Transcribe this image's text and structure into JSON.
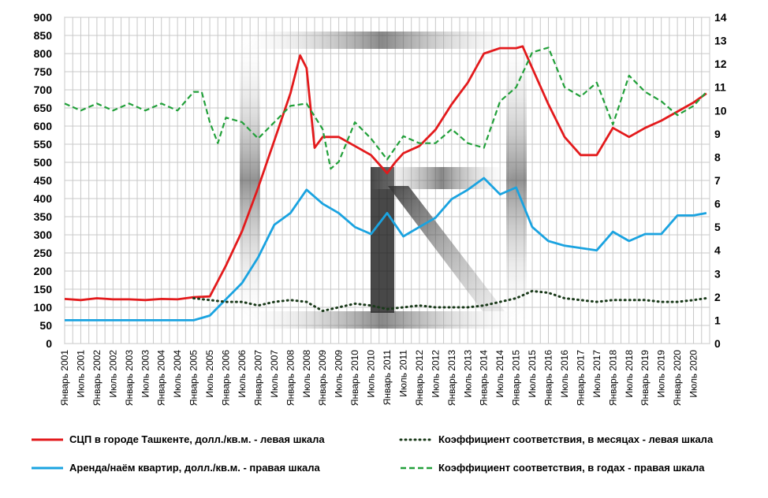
{
  "chart_data": {
    "type": "line",
    "left_axis": {
      "min": 0,
      "max": 900,
      "step": 50,
      "ticks": [
        "0",
        "50",
        "100",
        "150",
        "200",
        "250",
        "300",
        "350",
        "400",
        "450",
        "500",
        "550",
        "600",
        "650",
        "700",
        "750",
        "800",
        "850",
        "900"
      ]
    },
    "right_axis": {
      "min": 0,
      "max": 14,
      "step": 1,
      "ticks": [
        "0",
        "1",
        "2",
        "3",
        "4",
        "5",
        "6",
        "7",
        "8",
        "9",
        "10",
        "11",
        "12",
        "13",
        "14"
      ]
    },
    "x_ticks": [
      "Январь 2001",
      "Июль 2001",
      "Январь 2002",
      "Июль 2002",
      "Январь 2003",
      "Июль 2003",
      "Январь 2004",
      "Июль 2004",
      "Январь 2005",
      "Июль 2005",
      "Январь 2006",
      "Июль 2006",
      "Январь 2007",
      "Июль 2007",
      "Январь 2008",
      "Июль 2008",
      "Январь 2009",
      "Июль 2009",
      "Январь 2010",
      "Июль 2010",
      "Январь 2011",
      "Июль 2011",
      "Январь 2012",
      "Июль 2012",
      "Январь 2013",
      "Июль 2013",
      "Январь 2014",
      "Июль 2014",
      "Январь 2015",
      "Июль 2015",
      "Январь 2016",
      "Июль 2016",
      "Январь 2017",
      "Июль 2017",
      "Январь 2018",
      "Июль 2018",
      "Январь 2019",
      "Июль 2019",
      "Январь 2020",
      "Июль 2020"
    ],
    "grid": true,
    "legend_position": "bottom",
    "series": [
      {
        "name": "СЦП в городе Ташкенте, долл./кв.м. - левая шкала",
        "axis": "left",
        "color": "#e31a1c",
        "style": "solid",
        "x": [
          2001.0,
          2001.5,
          2002.0,
          2002.5,
          2003.0,
          2003.5,
          2004.0,
          2004.5,
          2005.0,
          2005.5,
          2006.0,
          2006.5,
          2007.0,
          2007.5,
          2008.0,
          2008.3,
          2008.5,
          2008.75,
          2009.0,
          2009.5,
          2010.0,
          2010.5,
          2011.0,
          2011.25,
          2011.5,
          2012.0,
          2012.5,
          2013.0,
          2013.5,
          2014.0,
          2014.5,
          2015.0,
          2015.2,
          2015.5,
          2016.0,
          2016.5,
          2017.0,
          2017.5,
          2018.0,
          2018.5,
          2019.0,
          2019.5,
          2020.0,
          2020.5,
          2020.9
        ],
        "values": [
          123,
          120,
          125,
          122,
          122,
          120,
          123,
          122,
          128,
          130,
          215,
          310,
          430,
          560,
          690,
          795,
          760,
          540,
          570,
          570,
          545,
          520,
          470,
          500,
          525,
          545,
          590,
          660,
          720,
          800,
          815,
          815,
          820,
          760,
          660,
          570,
          520,
          520,
          595,
          570,
          595,
          615,
          640,
          665,
          690
        ]
      },
      {
        "name": "Аренда/наём квартир, долл./кв.м. - правая шкала",
        "axis": "right",
        "color": "#1aa3e0",
        "style": "solid",
        "x": [
          2001.0,
          2002.0,
          2003.0,
          2004.0,
          2005.0,
          2005.5,
          2006.0,
          2006.5,
          2007.0,
          2007.5,
          2008.0,
          2008.5,
          2009.0,
          2009.5,
          2010.0,
          2010.5,
          2011.0,
          2011.5,
          2012.0,
          2012.5,
          2013.0,
          2013.5,
          2014.0,
          2014.5,
          2015.0,
          2015.5,
          2016.0,
          2016.5,
          2017.0,
          2017.5,
          2018.0,
          2018.5,
          2019.0,
          2019.5,
          2020.0,
          2020.5,
          2020.9
        ],
        "values": [
          1.0,
          1.0,
          1.0,
          1.0,
          1.0,
          1.2,
          1.9,
          2.6,
          3.7,
          5.1,
          5.6,
          6.6,
          6.0,
          5.6,
          5.0,
          4.7,
          5.6,
          4.6,
          5.0,
          5.4,
          6.2,
          6.6,
          7.1,
          6.4,
          6.7,
          5.0,
          4.4,
          4.2,
          4.1,
          4.0,
          4.8,
          4.4,
          4.7,
          4.7,
          5.5,
          5.5,
          5.6
        ]
      },
      {
        "name": "Коэффициент соответствия, в месяцах - левая шкала",
        "axis": "left",
        "color": "#1a3a1a",
        "style": "dotted",
        "x": [
          2005.0,
          2005.5,
          2006.0,
          2006.5,
          2007.0,
          2007.5,
          2008.0,
          2008.5,
          2009.0,
          2009.5,
          2010.0,
          2010.5,
          2011.0,
          2011.5,
          2012.0,
          2012.5,
          2013.0,
          2013.5,
          2014.0,
          2014.5,
          2015.0,
          2015.5,
          2016.0,
          2016.5,
          2017.0,
          2017.5,
          2018.0,
          2018.5,
          2019.0,
          2019.5,
          2020.0,
          2020.5,
          2020.9
        ],
        "values": [
          125,
          120,
          115,
          115,
          105,
          115,
          120,
          115,
          90,
          100,
          110,
          105,
          95,
          100,
          105,
          100,
          100,
          100,
          105,
          115,
          125,
          145,
          140,
          125,
          120,
          115,
          120,
          120,
          120,
          115,
          115,
          120,
          125
        ]
      },
      {
        "name": "Коэффициент соответствия, в годах - правая шкала",
        "axis": "right",
        "color": "#22a03a",
        "style": "dashed",
        "x": [
          2001.0,
          2001.5,
          2002.0,
          2002.5,
          2003.0,
          2003.5,
          2004.0,
          2004.5,
          2005.0,
          2005.25,
          2005.5,
          2005.75,
          2006.0,
          2006.5,
          2007.0,
          2007.5,
          2008.0,
          2008.5,
          2009.0,
          2009.25,
          2009.5,
          2010.0,
          2010.5,
          2011.0,
          2011.5,
          2012.0,
          2012.5,
          2013.0,
          2013.5,
          2014.0,
          2014.5,
          2015.0,
          2015.5,
          2016.0,
          2016.5,
          2017.0,
          2017.5,
          2018.0,
          2018.5,
          2019.0,
          2019.5,
          2020.0,
          2020.5,
          2020.9
        ],
        "values": [
          10.3,
          10.0,
          10.3,
          10.0,
          10.3,
          10.0,
          10.3,
          10.0,
          10.8,
          10.8,
          9.5,
          8.6,
          9.7,
          9.5,
          8.8,
          9.5,
          10.2,
          10.3,
          9.2,
          7.5,
          7.8,
          9.5,
          8.8,
          7.9,
          8.9,
          8.6,
          8.6,
          9.2,
          8.6,
          8.4,
          10.4,
          11.0,
          12.5,
          12.7,
          11.0,
          10.6,
          11.2,
          9.4,
          11.5,
          10.8,
          10.4,
          9.8,
          10.2,
          10.8
        ]
      }
    ]
  }
}
